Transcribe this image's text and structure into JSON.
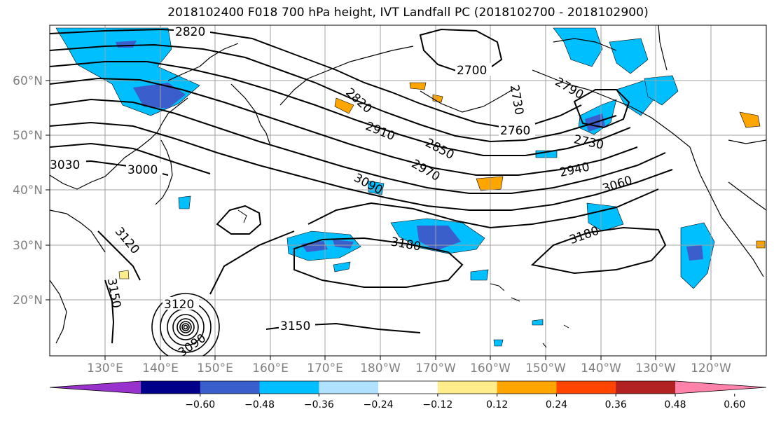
{
  "title": "2018102400 F018 700 hPa height, IVT Landfall PC (2018102700 - 2018102900)",
  "map": {
    "lat_labels": [
      "60°N",
      "50°N",
      "40°N",
      "30°N",
      "20°N"
    ],
    "lon_labels": [
      "130°E",
      "140°E",
      "150°E",
      "160°E",
      "170°E",
      "180°W",
      "170°W",
      "160°W",
      "150°W",
      "140°W",
      "130°W",
      "120°W"
    ],
    "contour_labels": [
      "2820",
      "2700",
      "2730",
      "2790",
      "2820",
      "2910",
      "2850",
      "2760",
      "2730",
      "3030",
      "3000",
      "2970",
      "3090",
      "2940",
      "3060",
      "3180",
      "3120",
      "3180",
      "3150",
      "3120",
      "3150",
      "3090"
    ]
  },
  "colorbar": {
    "ticks": [
      "−0.60",
      "−0.48",
      "−0.36",
      "−0.24",
      "−0.12",
      "0.12",
      "0.24",
      "0.36",
      "0.48",
      "0.60"
    ],
    "colors": [
      "#9932cc",
      "#00008b",
      "#3a5fcd",
      "#00bfff",
      "#b0e2ff",
      "#ffffff",
      "#ffec8b",
      "#ffa500",
      "#ff4500",
      "#b22222",
      "#ff82ab"
    ]
  }
}
